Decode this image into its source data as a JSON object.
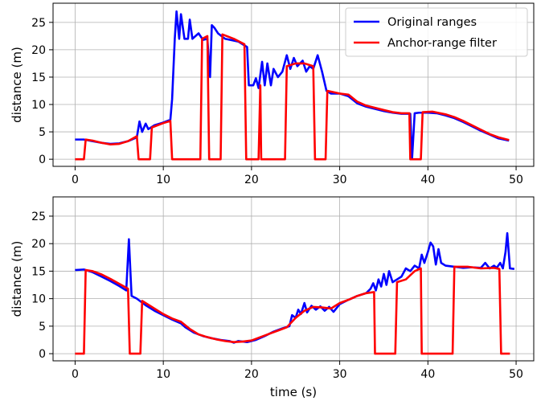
{
  "colors": {
    "original": "#0000ff",
    "filtered": "#ff0000",
    "grid": "#b0b0b0",
    "axis": "#000000",
    "legend_border": "#cccccc"
  },
  "chart_data": [
    {
      "type": "line",
      "title": "",
      "xlabel": "",
      "ylabel": "distance (m)",
      "xlim": [
        -2.5,
        52
      ],
      "ylim": [
        -1.3,
        28.5
      ],
      "xticks": [
        0,
        10,
        20,
        30,
        40,
        50
      ],
      "yticks": [
        0,
        5,
        10,
        15,
        20,
        25
      ],
      "grid": true,
      "legend_position": "upper right",
      "series": [
        {
          "name": "Original ranges",
          "color": "#0000ff",
          "points": [
            [
              0,
              3.6
            ],
            [
              1,
              3.6
            ],
            [
              2,
              3.3
            ],
            [
              3,
              3.0
            ],
            [
              4,
              2.8
            ],
            [
              5,
              2.9
            ],
            [
              6,
              3.3
            ],
            [
              7,
              4.0
            ],
            [
              7.3,
              6.9
            ],
            [
              7.6,
              5.0
            ],
            [
              8,
              6.5
            ],
            [
              8.3,
              5.5
            ],
            [
              9,
              6.2
            ],
            [
              10,
              6.7
            ],
            [
              10.8,
              7.2
            ],
            [
              11.0,
              11.0
            ],
            [
              11.3,
              22.0
            ],
            [
              11.5,
              27.0
            ],
            [
              11.8,
              22.0
            ],
            [
              12.0,
              26.5
            ],
            [
              12.4,
              22.0
            ],
            [
              12.8,
              22.0
            ],
            [
              13.0,
              25.5
            ],
            [
              13.3,
              22.0
            ],
            [
              14.0,
              23.0
            ],
            [
              14.5,
              21.8
            ],
            [
              15.0,
              22.0
            ],
            [
              15.3,
              15.0
            ],
            [
              15.5,
              24.5
            ],
            [
              15.8,
              24.0
            ],
            [
              16.2,
              23.0
            ],
            [
              17.0,
              22.0
            ],
            [
              18.5,
              21.5
            ],
            [
              19.5,
              20.5
            ],
            [
              19.7,
              13.5
            ],
            [
              20.2,
              13.5
            ],
            [
              20.5,
              14.8
            ],
            [
              20.8,
              13.0
            ],
            [
              21.2,
              17.8
            ],
            [
              21.5,
              13.5
            ],
            [
              21.8,
              17.5
            ],
            [
              22.2,
              13.5
            ],
            [
              22.5,
              16.5
            ],
            [
              23.0,
              15.0
            ],
            [
              23.5,
              16.0
            ],
            [
              24.0,
              19.0
            ],
            [
              24.4,
              16.5
            ],
            [
              24.8,
              18.5
            ],
            [
              25.2,
              17.0
            ],
            [
              25.8,
              18.0
            ],
            [
              26.2,
              16.0
            ],
            [
              26.6,
              17.0
            ],
            [
              27.0,
              16.5
            ],
            [
              27.5,
              19.0
            ],
            [
              28.0,
              16.0
            ],
            [
              28.5,
              12.5
            ],
            [
              29.0,
              12.0
            ],
            [
              30.0,
              12.0
            ],
            [
              31.0,
              11.5
            ],
            [
              32.0,
              10.2
            ],
            [
              33.0,
              9.6
            ],
            [
              34.0,
              9.2
            ],
            [
              35.0,
              8.8
            ],
            [
              36.0,
              8.5
            ],
            [
              37.0,
              8.3
            ],
            [
              38.0,
              8.3
            ],
            [
              38.2,
              0
            ],
            [
              38.5,
              8.4
            ],
            [
              39.0,
              8.5
            ],
            [
              40.0,
              8.5
            ],
            [
              41.0,
              8.4
            ],
            [
              42.0,
              8.0
            ],
            [
              43.0,
              7.5
            ],
            [
              44.0,
              6.8
            ],
            [
              45.0,
              6.0
            ],
            [
              46.0,
              5.2
            ],
            [
              47.0,
              4.5
            ],
            [
              48.0,
              3.8
            ],
            [
              49.2,
              3.4
            ]
          ]
        },
        {
          "name": "Anchor-range filter",
          "color": "#ff0000",
          "points": [
            [
              0,
              0
            ],
            [
              1.0,
              0
            ],
            [
              1.2,
              3.6
            ],
            [
              2,
              3.4
            ],
            [
              3,
              3.0
            ],
            [
              4,
              2.7
            ],
            [
              5,
              2.8
            ],
            [
              6,
              3.3
            ],
            [
              7,
              4.2
            ],
            [
              7.2,
              0
            ],
            [
              8.5,
              0
            ],
            [
              8.7,
              5.8
            ],
            [
              10,
              6.6
            ],
            [
              10.8,
              7.0
            ],
            [
              11.0,
              0
            ],
            [
              14.2,
              0
            ],
            [
              14.4,
              22.0
            ],
            [
              15.0,
              22.5
            ],
            [
              15.2,
              0
            ],
            [
              16.5,
              0
            ],
            [
              16.7,
              22.8
            ],
            [
              18.0,
              22.0
            ],
            [
              19.2,
              21.0
            ],
            [
              19.4,
              0
            ],
            [
              20.8,
              0
            ],
            [
              21.0,
              13.5
            ],
            [
              21.1,
              0
            ],
            [
              23.8,
              0
            ],
            [
              24.0,
              17.0
            ],
            [
              25.0,
              17.5
            ],
            [
              26.0,
              17.5
            ],
            [
              27.0,
              17.0
            ],
            [
              27.2,
              0
            ],
            [
              28.4,
              0
            ],
            [
              28.6,
              12.5
            ],
            [
              30.0,
              12.0
            ],
            [
              31.0,
              11.8
            ],
            [
              32.0,
              10.5
            ],
            [
              33.0,
              9.8
            ],
            [
              34.0,
              9.4
            ],
            [
              35.0,
              9.0
            ],
            [
              36.0,
              8.6
            ],
            [
              37.0,
              8.4
            ],
            [
              37.9,
              8.4
            ],
            [
              38.0,
              0
            ],
            [
              39.2,
              0
            ],
            [
              39.4,
              8.6
            ],
            [
              40.5,
              8.7
            ],
            [
              42.0,
              8.2
            ],
            [
              43.0,
              7.7
            ],
            [
              44.0,
              7.0
            ],
            [
              45.0,
              6.2
            ],
            [
              46.0,
              5.4
            ],
            [
              47.0,
              4.6
            ],
            [
              48.0,
              4.0
            ],
            [
              49.2,
              3.5
            ]
          ]
        }
      ]
    },
    {
      "type": "line",
      "title": "",
      "xlabel": "time (s)",
      "ylabel": "distance (m)",
      "xlim": [
        -2.5,
        52
      ],
      "ylim": [
        -1.3,
        28.5
      ],
      "xticks": [
        0,
        10,
        20,
        30,
        40,
        50
      ],
      "yticks": [
        0,
        5,
        10,
        15,
        20,
        25
      ],
      "grid": true,
      "legend_position": "",
      "series": [
        {
          "name": "Original ranges",
          "color": "#0000ff",
          "points": [
            [
              0,
              15.2
            ],
            [
              1.0,
              15.3
            ],
            [
              2.0,
              14.8
            ],
            [
              3.0,
              14.0
            ],
            [
              4.0,
              13.2
            ],
            [
              5.0,
              12.3
            ],
            [
              5.8,
              11.5
            ],
            [
              6.1,
              20.8
            ],
            [
              6.4,
              10.5
            ],
            [
              7.0,
              10.0
            ],
            [
              8.0,
              8.8
            ],
            [
              9.0,
              7.8
            ],
            [
              10.0,
              7.0
            ],
            [
              11.0,
              6.2
            ],
            [
              12.0,
              5.5
            ],
            [
              12.5,
              4.8
            ],
            [
              13.5,
              3.8
            ],
            [
              14.5,
              3.2
            ],
            [
              15.5,
              2.8
            ],
            [
              16.5,
              2.5
            ],
            [
              17.5,
              2.3
            ],
            [
              18.0,
              2.0
            ],
            [
              18.5,
              2.3
            ],
            [
              19.5,
              2.1
            ],
            [
              20.5,
              2.5
            ],
            [
              21.5,
              3.2
            ],
            [
              22.5,
              4.0
            ],
            [
              23.5,
              4.6
            ],
            [
              24.3,
              5.0
            ],
            [
              24.6,
              7.0
            ],
            [
              25.0,
              6.5
            ],
            [
              25.3,
              8.0
            ],
            [
              25.6,
              7.2
            ],
            [
              26.0,
              9.2
            ],
            [
              26.3,
              7.5
            ],
            [
              26.8,
              8.7
            ],
            [
              27.3,
              8.0
            ],
            [
              27.8,
              8.6
            ],
            [
              28.3,
              7.8
            ],
            [
              28.8,
              8.5
            ],
            [
              29.3,
              7.6
            ],
            [
              30.0,
              9.0
            ],
            [
              31.0,
              9.8
            ],
            [
              32.0,
              10.5
            ],
            [
              33.0,
              11.0
            ],
            [
              33.5,
              11.8
            ],
            [
              33.8,
              12.8
            ],
            [
              34.1,
              11.5
            ],
            [
              34.4,
              13.5
            ],
            [
              34.7,
              12.2
            ],
            [
              35.0,
              14.5
            ],
            [
              35.3,
              12.5
            ],
            [
              35.6,
              15.0
            ],
            [
              36.0,
              13.0
            ],
            [
              36.5,
              13.5
            ],
            [
              37.0,
              14.0
            ],
            [
              37.5,
              15.5
            ],
            [
              38.0,
              15.0
            ],
            [
              38.5,
              16.0
            ],
            [
              39.0,
              15.5
            ],
            [
              39.3,
              18.0
            ],
            [
              39.6,
              16.5
            ],
            [
              40.0,
              18.5
            ],
            [
              40.3,
              20.2
            ],
            [
              40.6,
              19.5
            ],
            [
              40.9,
              16.2
            ],
            [
              41.2,
              19.0
            ],
            [
              41.5,
              16.5
            ],
            [
              42.0,
              16.0
            ],
            [
              43.0,
              15.8
            ],
            [
              44.0,
              15.6
            ],
            [
              45.0,
              15.7
            ],
            [
              46.0,
              15.6
            ],
            [
              46.5,
              16.5
            ],
            [
              47.0,
              15.5
            ],
            [
              47.5,
              16.0
            ],
            [
              47.8,
              15.6
            ],
            [
              48.2,
              16.5
            ],
            [
              48.5,
              15.5
            ],
            [
              48.8,
              18.5
            ],
            [
              49.0,
              21.9
            ],
            [
              49.3,
              15.5
            ],
            [
              49.8,
              15.4
            ]
          ]
        },
        {
          "name": "Anchor-range filter",
          "color": "#ff0000",
          "points": [
            [
              0,
              0
            ],
            [
              1.0,
              0
            ],
            [
              1.2,
              15.2
            ],
            [
              2.0,
              15.0
            ],
            [
              3.0,
              14.4
            ],
            [
              4.0,
              13.6
            ],
            [
              5.0,
              12.7
            ],
            [
              6.0,
              11.8
            ],
            [
              6.2,
              0
            ],
            [
              7.4,
              0
            ],
            [
              7.6,
              9.6
            ],
            [
              9.0,
              8.2
            ],
            [
              10.0,
              7.2
            ],
            [
              11.0,
              6.4
            ],
            [
              12.0,
              5.8
            ],
            [
              13.0,
              4.5
            ],
            [
              14.0,
              3.5
            ],
            [
              15.0,
              3.0
            ],
            [
              16.0,
              2.6
            ],
            [
              17.0,
              2.3
            ],
            [
              18.0,
              2.1
            ],
            [
              19.0,
              2.2
            ],
            [
              20.0,
              2.4
            ],
            [
              21.0,
              3.0
            ],
            [
              22.0,
              3.6
            ],
            [
              23.0,
              4.2
            ],
            [
              24.0,
              4.8
            ],
            [
              25.0,
              6.5
            ],
            [
              26.0,
              7.8
            ],
            [
              27.0,
              8.5
            ],
            [
              28.0,
              8.4
            ],
            [
              29.0,
              8.2
            ],
            [
              30.0,
              9.2
            ],
            [
              31.0,
              9.8
            ],
            [
              32.0,
              10.5
            ],
            [
              33.0,
              11.0
            ],
            [
              33.9,
              11.2
            ],
            [
              34.0,
              0
            ],
            [
              36.3,
              0
            ],
            [
              36.5,
              13.0
            ],
            [
              37.5,
              13.5
            ],
            [
              38.5,
              15.0
            ],
            [
              39.2,
              15.5
            ],
            [
              39.3,
              0
            ],
            [
              42.8,
              0
            ],
            [
              43.0,
              15.8
            ],
            [
              44.5,
              15.8
            ],
            [
              46.0,
              15.5
            ],
            [
              47.5,
              15.6
            ],
            [
              48.1,
              15.4
            ],
            [
              48.3,
              0
            ],
            [
              49.3,
              0
            ]
          ]
        }
      ]
    }
  ]
}
